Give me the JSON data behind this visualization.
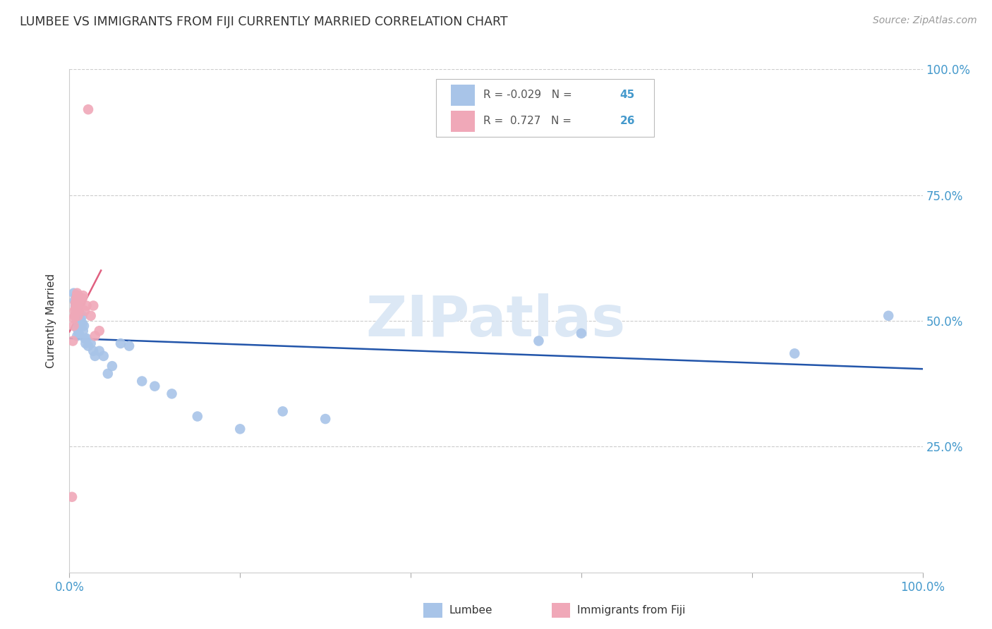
{
  "title": "LUMBEE VS IMMIGRANTS FROM FIJI CURRENTLY MARRIED CORRELATION CHART",
  "source": "Source: ZipAtlas.com",
  "ylabel": "Currently Married",
  "xlim": [
    0.0,
    1.0
  ],
  "ylim": [
    0.0,
    1.0
  ],
  "blue_color": "#a8c4e8",
  "pink_color": "#f0a8b8",
  "blue_line_color": "#2255aa",
  "pink_line_color": "#e06080",
  "watermark_color": "#dce8f5",
  "lumbee_x": [
    0.005,
    0.006,
    0.007,
    0.007,
    0.008,
    0.008,
    0.009,
    0.009,
    0.009,
    0.01,
    0.01,
    0.01,
    0.011,
    0.011,
    0.012,
    0.013,
    0.014,
    0.015,
    0.015,
    0.016,
    0.017,
    0.018,
    0.019,
    0.02,
    0.022,
    0.025,
    0.028,
    0.03,
    0.035,
    0.04,
    0.045,
    0.05,
    0.06,
    0.07,
    0.085,
    0.1,
    0.12,
    0.15,
    0.2,
    0.25,
    0.3,
    0.55,
    0.6,
    0.85,
    0.96
  ],
  "lumbee_y": [
    0.555,
    0.54,
    0.53,
    0.51,
    0.55,
    0.52,
    0.5,
    0.485,
    0.47,
    0.55,
    0.53,
    0.51,
    0.49,
    0.475,
    0.51,
    0.5,
    0.49,
    0.51,
    0.495,
    0.48,
    0.49,
    0.465,
    0.455,
    0.465,
    0.45,
    0.455,
    0.44,
    0.43,
    0.44,
    0.43,
    0.395,
    0.41,
    0.455,
    0.45,
    0.38,
    0.37,
    0.355,
    0.31,
    0.285,
    0.32,
    0.305,
    0.46,
    0.475,
    0.435,
    0.51
  ],
  "fiji_x": [
    0.003,
    0.004,
    0.005,
    0.005,
    0.006,
    0.006,
    0.007,
    0.007,
    0.008,
    0.008,
    0.009,
    0.009,
    0.01,
    0.011,
    0.012,
    0.013,
    0.014,
    0.015,
    0.016,
    0.018,
    0.02,
    0.022,
    0.025,
    0.028,
    0.03,
    0.035
  ],
  "fiji_y": [
    0.15,
    0.46,
    0.49,
    0.505,
    0.51,
    0.52,
    0.525,
    0.535,
    0.54,
    0.545,
    0.55,
    0.555,
    0.51,
    0.52,
    0.53,
    0.535,
    0.54,
    0.545,
    0.55,
    0.52,
    0.53,
    0.92,
    0.51,
    0.53,
    0.47,
    0.48
  ],
  "grid_color": "#cccccc",
  "tick_color": "#aaaaaa",
  "axis_label_color": "#4499cc",
  "text_color": "#333333"
}
